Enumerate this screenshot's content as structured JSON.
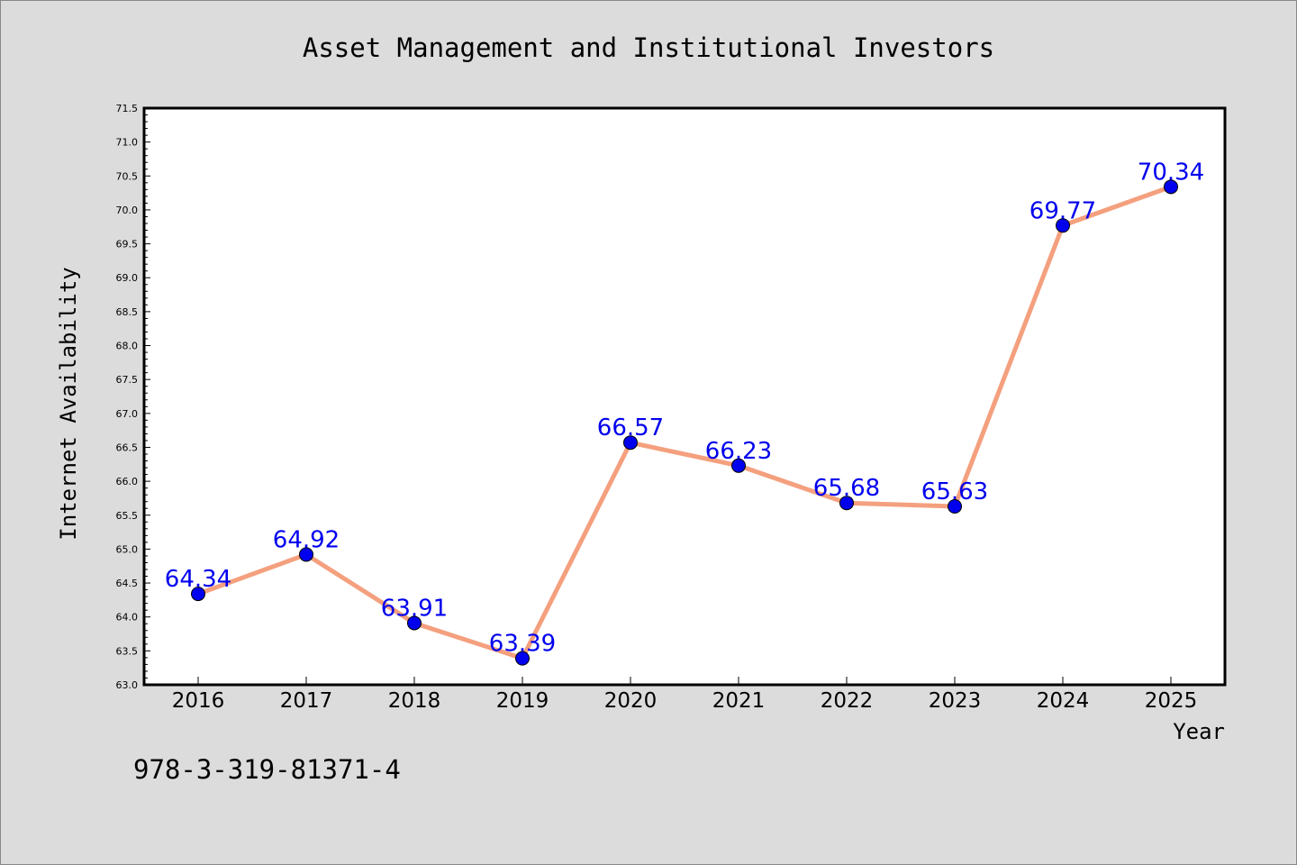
{
  "chart_data": {
    "type": "line",
    "title": "Asset Management and Institutional Investors",
    "xlabel": "Year",
    "ylabel": "Internet Availability",
    "x": [
      "2016",
      "2017",
      "2018",
      "2019",
      "2020",
      "2021",
      "2022",
      "2023",
      "2024",
      "2025"
    ],
    "series": [
      {
        "values": [
          64.34,
          64.92,
          63.91,
          63.39,
          66.57,
          66.23,
          65.68,
          65.63,
          69.77,
          70.34
        ]
      }
    ],
    "data_labels": [
      "64.34",
      "64.92",
      "63.91",
      "63.39",
      "66.57",
      "66.23",
      "65.68",
      "65.63",
      "69.77",
      "70.34"
    ],
    "ylim": [
      63.0,
      71.5
    ],
    "yticks": [
      "63.0",
      "63.5",
      "64.0",
      "64.5",
      "65.0",
      "65.5",
      "66.0",
      "66.5",
      "67.0",
      "67.5",
      "68.0",
      "68.5",
      "69.0",
      "69.5",
      "70.0",
      "70.5",
      "71.0",
      "71.5"
    ],
    "grid": false,
    "legend": "none",
    "colors": {
      "line": "#f4a07e",
      "marker": "#0000ee",
      "label": "#0000ee",
      "background": "#dcdcdc",
      "plot_background": "#ffffff"
    }
  },
  "annotation": "978-3-319-81371-4"
}
